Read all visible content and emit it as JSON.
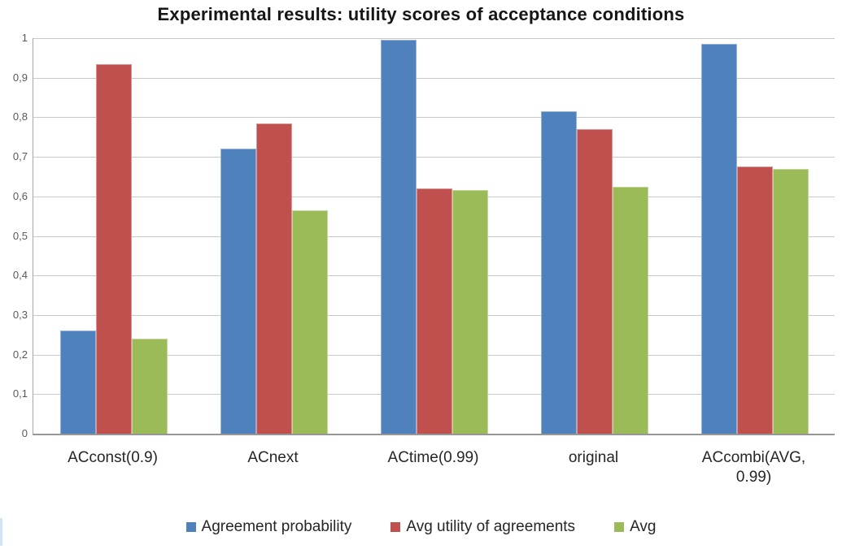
{
  "title": "Experimental results: utility scores of acceptance conditions",
  "chart_data": {
    "type": "bar",
    "title": "Experimental results: utility scores of acceptance conditions",
    "categories": [
      "ACconst(0.9)",
      "ACnext",
      "ACtime(0.99)",
      "original",
      "ACcombi(AVG, 0.99)"
    ],
    "series": [
      {
        "name": "Agreement probability",
        "color": "#4F81BD",
        "edge_color": "#95B3D7",
        "values": [
          0.26,
          0.72,
          0.995,
          0.815,
          0.985
        ]
      },
      {
        "name": "Avg utility of agreements",
        "color": "#C0504D",
        "edge_color": "#D99694",
        "values": [
          0.935,
          0.785,
          0.62,
          0.77,
          0.675
        ]
      },
      {
        "name": "Avg",
        "color": "#9BBB59",
        "edge_color": "#C3D69B",
        "values": [
          0.24,
          0.565,
          0.615,
          0.625,
          0.67
        ]
      }
    ],
    "xlabel": "",
    "ylabel": "",
    "ylim": [
      0,
      1
    ],
    "y_tick_values": [
      0,
      0.1,
      0.2,
      0.3,
      0.4,
      0.5,
      0.6,
      0.7,
      0.8,
      0.9,
      1
    ],
    "y_tick_labels": [
      "0",
      "0,1",
      "0,2",
      "0,3",
      "0,4",
      "0,5",
      "0,6",
      "0,7",
      "0,8",
      "0,9",
      "1"
    ],
    "grid": true,
    "legend_position": "bottom"
  },
  "colors": {
    "background": "#FFFFFF",
    "gridline": "#C9C9C9",
    "axis_line": "#A6A6A6",
    "title_text": "#161616",
    "tick_text": "#595959",
    "label_text": "#262626",
    "edge_artifact": "#CFE5F5"
  }
}
